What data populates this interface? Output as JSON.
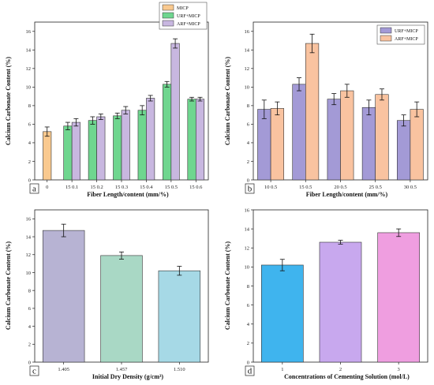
{
  "chart_data": [
    {
      "type": "bar",
      "panel_letter": "a",
      "xlabel": "Fiber Length/content (mm/%)",
      "ylabel": "Calcium Carbonate Content (%)",
      "ylim": [
        0,
        17
      ],
      "yticks": [
        0,
        2,
        4,
        6,
        8,
        10,
        12,
        14,
        16
      ],
      "categories": [
        "0",
        "15 0.1",
        "15 0.2",
        "15 0.3",
        "15 0.4",
        "15 0.5",
        "15 0.6"
      ],
      "series": [
        {
          "name": "MICP",
          "color": "#f9c98f",
          "values": [
            5.2,
            null,
            null,
            null,
            null,
            null,
            null
          ],
          "errors": [
            0.5,
            null,
            null,
            null,
            null,
            null,
            null
          ]
        },
        {
          "name": "URF+MICP",
          "color": "#6fd68f",
          "values": [
            null,
            5.8,
            6.4,
            6.9,
            7.5,
            10.3,
            8.7
          ],
          "errors": [
            null,
            0.4,
            0.4,
            0.3,
            0.5,
            0.3,
            0.2
          ]
        },
        {
          "name": "ARF+MICP",
          "color": "#c8b7e0",
          "values": [
            null,
            6.2,
            6.8,
            7.5,
            8.8,
            14.7,
            8.7
          ],
          "errors": [
            null,
            0.4,
            0.3,
            0.4,
            0.3,
            0.5,
            0.2
          ]
        }
      ],
      "legend_placement": "top-right"
    },
    {
      "type": "bar",
      "panel_letter": "b",
      "xlabel": "Fiber Length/content (mm/%)",
      "ylabel": "Calcium Carbonate Content (%)",
      "ylim": [
        0,
        17
      ],
      "yticks": [
        0,
        2,
        4,
        6,
        8,
        10,
        12,
        14,
        16
      ],
      "categories": [
        "10 0.5",
        "15 0.5",
        "20 0.5",
        "25 0.5",
        "30 0.5"
      ],
      "series": [
        {
          "name": "URF+MICP",
          "color": "#a39ad6",
          "values": [
            7.6,
            10.3,
            8.7,
            7.8,
            6.4
          ],
          "errors": [
            1.0,
            0.7,
            0.6,
            0.8,
            0.6
          ]
        },
        {
          "name": "ARF+MICP",
          "color": "#f9c3a0",
          "values": [
            7.7,
            14.7,
            9.6,
            9.2,
            7.6
          ],
          "errors": [
            0.7,
            1.0,
            0.7,
            0.6,
            0.8
          ]
        }
      ],
      "legend_placement": "top-right"
    },
    {
      "type": "bar",
      "panel_letter": "c",
      "xlabel": "Initial Dry Density (g/cm³)",
      "ylabel": "Calcium Carbonate Content (%)",
      "ylim": [
        0,
        17
      ],
      "yticks": [
        0,
        2,
        4,
        6,
        8,
        10,
        12,
        14,
        16
      ],
      "categories": [
        "1.405",
        "1.457",
        "1.510"
      ],
      "series": [
        {
          "name": "",
          "colors": [
            "#b7b3d3",
            "#a9d8c5",
            "#a6d9e6"
          ],
          "values": [
            14.7,
            11.9,
            10.2
          ],
          "errors": [
            0.7,
            0.4,
            0.5
          ]
        }
      ]
    },
    {
      "type": "bar",
      "panel_letter": "d",
      "xlabel": "Concentrations of Cementing Solution (mol/L)",
      "ylabel": "Calcium Carbonate Content (%)",
      "ylim": [
        0,
        16
      ],
      "yticks": [
        0,
        2,
        4,
        6,
        8,
        10,
        12,
        14,
        16
      ],
      "categories": [
        "1",
        "2",
        "3"
      ],
      "series": [
        {
          "name": "",
          "colors": [
            "#3fb4ee",
            "#c8a8ee",
            "#ef9ee0"
          ],
          "values": [
            10.2,
            12.6,
            13.6
          ],
          "errors": [
            0.6,
            0.2,
            0.4
          ]
        }
      ]
    }
  ]
}
